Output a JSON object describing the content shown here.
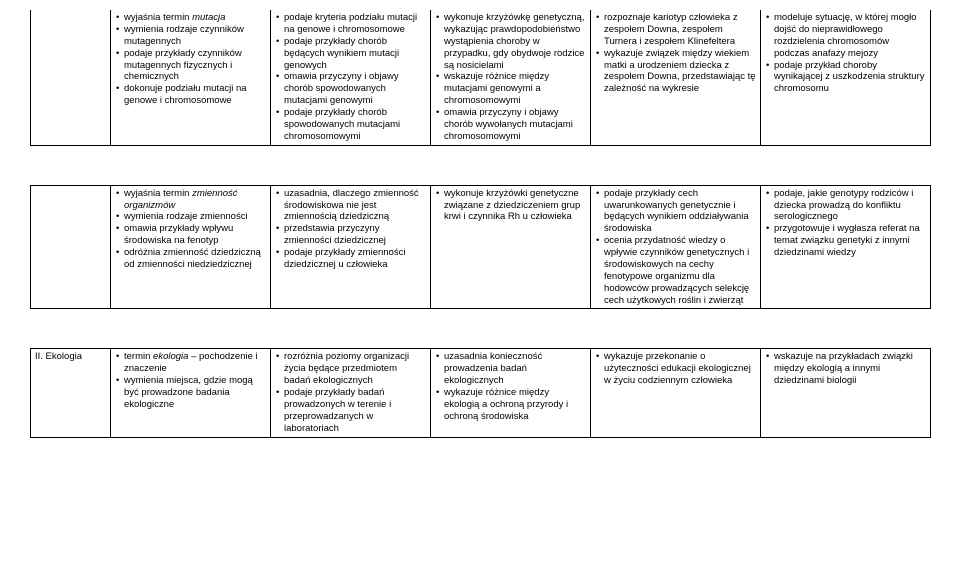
{
  "rows": [
    {
      "first": "",
      "cells": [
        [
          "wyjaśnia termin <i>mutacja</i>",
          "wymienia rodzaje czynników mutagennych",
          "podaje przykłady czynników mutagennych fizycznych i chemicznych",
          "dokonuje podziału mutacji na genowe i chromosomowe"
        ],
        [
          "podaje kryteria podziału mutacji na genowe i chromosomowe",
          "podaje przykłady chorób będących wynikiem mutacji genowych",
          "omawia przyczyny i objawy chorób spowodowanych mutacjami genowymi",
          "podaje przykłady chorób spowodowanych mutacjami chromosomowymi"
        ],
        [
          "wykonuje krzyżówkę genetyczną, wykazując prawdopodobieństwo wystąpienia choroby w przypadku, gdy obydwoje rodzice są nosicielami",
          "wskazuje różnice między mutacjami genowymi a chromosomowymi",
          "omawia przyczyny i objawy chorób wywołanych mutacjami chromosomowymi"
        ],
        [
          "rozpoznaje kariotyp człowieka z zespołem Downa, zespołem Turnera i zespołem Klinefeltera",
          "wykazuje związek między wiekiem matki a urodzeniem dziecka z zespołem Downa, przedstawiając tę zależność na wykresie"
        ],
        [
          "modeluje sytuację, w której mogło dojść do nieprawidłowego rozdzielenia chromosomów podczas anafazy mejozy",
          "podaje przykład choroby wynikającej z uszkodzenia struktury chromosomu"
        ]
      ]
    },
    {
      "first": "",
      "cells": [
        [
          "wyjaśnia termin <i>zmienność organizmów</i>",
          "wymienia rodzaje zmienności",
          "omawia przykłady wpływu środowiska na fenotyp",
          "odróżnia zmienność dziedziczną od zmienności niedziedzicznej"
        ],
        [
          "uzasadnia, dlaczego zmienność środowiskowa nie jest zmiennością dziedziczną",
          "przedstawia przyczyny zmienności dziedzicznej",
          "podaje przykłady zmienności dziedzicznej u człowieka"
        ],
        [
          "wykonuje krzyżówki genetyczne związane z dziedziczeniem grup krwi i czynnika Rh u człowieka"
        ],
        [
          "podaje przykłady cech uwarunkowanych genetycznie i będących wynikiem oddziaływania środowiska",
          "ocenia przydatność wiedzy o wpływie czynników genetycznych i środowiskowych na cechy fenotypowe organizmu dla hodowców prowadzących selekcję cech użytkowych roślin i zwierząt"
        ],
        [
          "podaje, jakie genotypy rodziców i dziecka prowadzą do konfliktu serologicznego",
          "przygotowuje i wygłasza referat na temat związku genetyki z innymi dziedzinami wiedzy"
        ]
      ]
    },
    {
      "first": "II. Ekologia",
      "cells": [
        [
          "termin <i>ekologia</i> – pochodzenie i znaczenie",
          "wymienia miejsca, gdzie mogą być prowadzone badania ekologiczne"
        ],
        [
          "rozróżnia poziomy organizacji życia będące przedmiotem badań ekologicznych",
          "podaje przykłady badań prowadzonych w terenie i przeprowadzanych w laboratoriach"
        ],
        [
          "uzasadnia konieczność prowadzenia badań ekologicznych",
          "wykazuje różnice między ekologią a ochroną przyrody i ochroną środowiska"
        ],
        [
          "wykazuje przekonanie o użyteczności edukacji ekologicznej w życiu codziennym człowieka"
        ],
        [
          "wskazuje na przykładach związki między ekologią a innymi dziedzinami biologii"
        ]
      ]
    }
  ]
}
